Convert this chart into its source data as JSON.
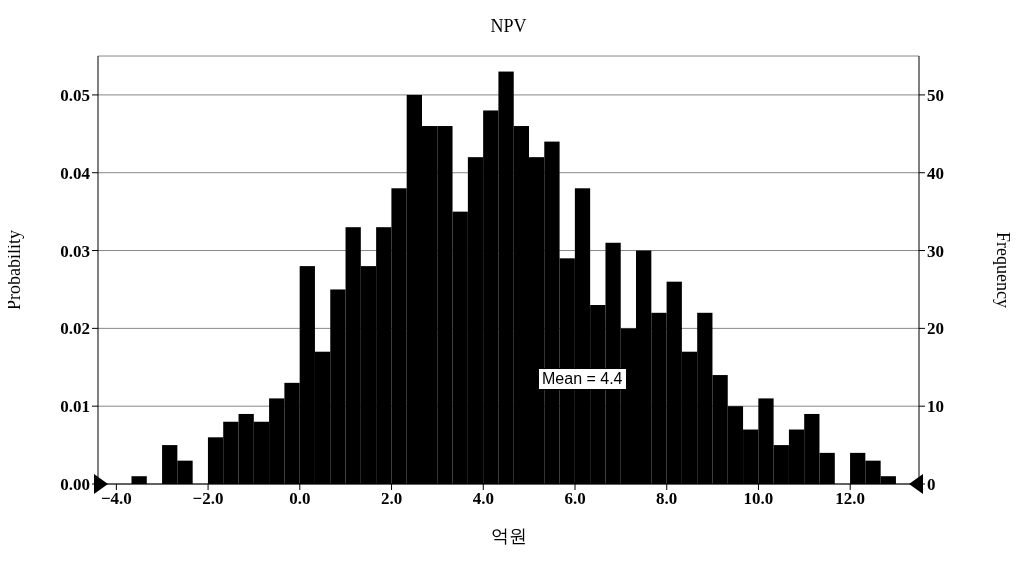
{
  "chart_data": {
    "type": "histogram",
    "title": "NPV",
    "xlabel": "억원",
    "ylabel": "Probability",
    "y2label": "Frequency",
    "bins": [
      -4,
      -3.667,
      -3.333,
      -3,
      -2.667,
      -2.333,
      -2,
      -1.667,
      -1.333,
      -1,
      -0.667,
      -0.333,
      0,
      0.333,
      0.667,
      1,
      1.333,
      1.667,
      2,
      2.333,
      2.667,
      3,
      3.333,
      3.667,
      4,
      4.333,
      4.667,
      5,
      5.333,
      5.667,
      6,
      6.333,
      6.667,
      7,
      7.333,
      7.667,
      8,
      8.333,
      8.667,
      9,
      9.333,
      9.667,
      10,
      10.333,
      10.667,
      11,
      11.333,
      11.667,
      12,
      12.333,
      12.667,
      13
    ],
    "values": [
      0,
      0.001,
      0,
      0.005,
      0.003,
      0,
      0.006,
      0.008,
      0.009,
      0.008,
      0.011,
      0.013,
      0.028,
      0.017,
      0.025,
      0.033,
      0.028,
      0.033,
      0.038,
      0.05,
      0.046,
      0.046,
      0.035,
      0.042,
      0.048,
      0.053,
      0.046,
      0.042,
      0.044,
      0.029,
      0.038,
      0.023,
      0.031,
      0.02,
      0.03,
      0.022,
      0.026,
      0.017,
      0.022,
      0.014,
      0.01,
      0.007,
      0.011,
      0.005,
      0.007,
      0.009,
      0.004,
      0,
      0.004,
      0.003,
      0.001
    ],
    "color": "#000000",
    "xlim": [
      -4.4,
      13.5
    ],
    "xticks": [
      {
        "value": -4,
        "label": "−4.0"
      },
      {
        "value": -2,
        "label": "−2.0"
      },
      {
        "value": 0,
        "label": "0.0"
      },
      {
        "value": 2,
        "label": "2.0"
      },
      {
        "value": 4,
        "label": "4.0"
      },
      {
        "value": 6,
        "label": "6.0"
      },
      {
        "value": 8,
        "label": "8.0"
      },
      {
        "value": 10,
        "label": "10.0"
      },
      {
        "value": 12,
        "label": "12.0"
      }
    ],
    "ylim": [
      0,
      0.055
    ],
    "yticks": [
      {
        "value": 0,
        "label": "0.00"
      },
      {
        "value": 0.01,
        "label": "0.01"
      },
      {
        "value": 0.02,
        "label": "0.02"
      },
      {
        "value": 0.03,
        "label": "0.03"
      },
      {
        "value": 0.04,
        "label": "0.04"
      },
      {
        "value": 0.05,
        "label": "0.05"
      }
    ],
    "y2lim": [
      0,
      55
    ],
    "y2ticks": [
      0,
      10,
      20,
      30,
      40,
      50
    ],
    "grid": "y",
    "annotations": [
      "Mean = 4.4"
    ]
  }
}
